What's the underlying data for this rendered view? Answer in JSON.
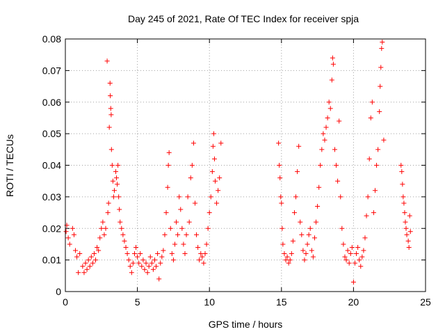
{
  "chart_data": {
    "type": "scatter",
    "title": "Day 245 of 2021, Rate Of TEC Index for receiver spja",
    "xlabel": "GPS time / hours",
    "ylabel": "ROTI / TECUs",
    "xlim": [
      0,
      25
    ],
    "ylim": [
      0,
      0.08
    ],
    "xticks": [
      "0",
      "5",
      "10",
      "15",
      "20",
      "25"
    ],
    "yticks": [
      "0",
      "0.01",
      "0.02",
      "0.03",
      "0.04",
      "0.05",
      "0.06",
      "0.07",
      "0.08"
    ],
    "grid": true,
    "marker": "+",
    "color": "#ff0000",
    "points": [
      [
        0.05,
        0.019
      ],
      [
        0.1,
        0.021
      ],
      [
        0.2,
        0.017
      ],
      [
        0.3,
        0.015
      ],
      [
        0.5,
        0.02
      ],
      [
        0.6,
        0.018
      ],
      [
        0.7,
        0.013
      ],
      [
        0.8,
        0.011
      ],
      [
        0.9,
        0.006
      ],
      [
        1.0,
        0.012
      ],
      [
        1.2,
        0.008
      ],
      [
        1.3,
        0.006
      ],
      [
        1.4,
        0.009
      ],
      [
        1.5,
        0.007
      ],
      [
        1.6,
        0.01
      ],
      [
        1.7,
        0.008
      ],
      [
        1.8,
        0.011
      ],
      [
        1.9,
        0.009
      ],
      [
        2.0,
        0.012
      ],
      [
        2.1,
        0.01
      ],
      [
        2.2,
        0.014
      ],
      [
        2.3,
        0.013
      ],
      [
        2.4,
        0.017
      ],
      [
        2.5,
        0.02
      ],
      [
        2.6,
        0.022
      ],
      [
        2.7,
        0.018
      ],
      [
        2.8,
        0.02
      ],
      [
        2.9,
        0.073
      ],
      [
        2.95,
        0.025
      ],
      [
        3.0,
        0.028
      ],
      [
        3.05,
        0.052
      ],
      [
        3.1,
        0.066
      ],
      [
        3.12,
        0.062
      ],
      [
        3.15,
        0.058
      ],
      [
        3.18,
        0.056
      ],
      [
        3.2,
        0.045
      ],
      [
        3.25,
        0.04
      ],
      [
        3.3,
        0.035
      ],
      [
        3.35,
        0.03
      ],
      [
        3.4,
        0.032
      ],
      [
        3.5,
        0.038
      ],
      [
        3.55,
        0.036
      ],
      [
        3.6,
        0.034
      ],
      [
        3.65,
        0.04
      ],
      [
        3.7,
        0.03
      ],
      [
        3.75,
        0.026
      ],
      [
        3.8,
        0.022
      ],
      [
        3.9,
        0.02
      ],
      [
        4.0,
        0.018
      ],
      [
        4.1,
        0.016
      ],
      [
        4.2,
        0.014
      ],
      [
        4.3,
        0.012
      ],
      [
        4.4,
        0.01
      ],
      [
        4.5,
        0.008
      ],
      [
        4.6,
        0.006
      ],
      [
        4.7,
        0.009
      ],
      [
        4.8,
        0.012
      ],
      [
        4.9,
        0.014
      ],
      [
        5.0,
        0.011
      ],
      [
        5.1,
        0.009
      ],
      [
        5.2,
        0.012
      ],
      [
        5.3,
        0.008
      ],
      [
        5.4,
        0.01
      ],
      [
        5.5,
        0.007
      ],
      [
        5.6,
        0.009
      ],
      [
        5.7,
        0.006
      ],
      [
        5.8,
        0.008
      ],
      [
        5.9,
        0.011
      ],
      [
        6.0,
        0.009
      ],
      [
        6.1,
        0.007
      ],
      [
        6.2,
        0.01
      ],
      [
        6.3,
        0.008
      ],
      [
        6.4,
        0.012
      ],
      [
        6.5,
        0.004
      ],
      [
        6.6,
        0.009
      ],
      [
        6.7,
        0.011
      ],
      [
        6.8,
        0.013
      ],
      [
        6.9,
        0.018
      ],
      [
        7.0,
        0.025
      ],
      [
        7.1,
        0.033
      ],
      [
        7.15,
        0.04
      ],
      [
        7.2,
        0.044
      ],
      [
        7.3,
        0.02
      ],
      [
        7.4,
        0.012
      ],
      [
        7.5,
        0.01
      ],
      [
        7.6,
        0.015
      ],
      [
        7.7,
        0.022
      ],
      [
        7.8,
        0.018
      ],
      [
        7.9,
        0.03
      ],
      [
        8.0,
        0.026
      ],
      [
        8.1,
        0.02
      ],
      [
        8.2,
        0.015
      ],
      [
        8.3,
        0.012
      ],
      [
        8.4,
        0.018
      ],
      [
        8.5,
        0.03
      ],
      [
        8.6,
        0.022
      ],
      [
        8.7,
        0.036
      ],
      [
        8.8,
        0.04
      ],
      [
        8.9,
        0.047
      ],
      [
        9.0,
        0.028
      ],
      [
        9.1,
        0.018
      ],
      [
        9.2,
        0.014
      ],
      [
        9.3,
        0.01
      ],
      [
        9.4,
        0.012
      ],
      [
        9.5,
        0.011
      ],
      [
        9.6,
        0.009
      ],
      [
        9.7,
        0.012
      ],
      [
        9.8,
        0.015
      ],
      [
        9.9,
        0.02
      ],
      [
        10.0,
        0.025
      ],
      [
        10.1,
        0.03
      ],
      [
        10.2,
        0.038
      ],
      [
        10.25,
        0.046
      ],
      [
        10.3,
        0.05
      ],
      [
        10.35,
        0.042
      ],
      [
        10.4,
        0.035
      ],
      [
        10.5,
        0.028
      ],
      [
        10.6,
        0.032
      ],
      [
        10.7,
        0.036
      ],
      [
        10.8,
        0.047
      ],
      [
        14.8,
        0.047
      ],
      [
        14.85,
        0.04
      ],
      [
        14.9,
        0.036
      ],
      [
        14.95,
        0.03
      ],
      [
        15.0,
        0.028
      ],
      [
        15.05,
        0.02
      ],
      [
        15.1,
        0.015
      ],
      [
        15.2,
        0.012
      ],
      [
        15.3,
        0.01
      ],
      [
        15.4,
        0.011
      ],
      [
        15.5,
        0.009
      ],
      [
        15.6,
        0.01
      ],
      [
        15.7,
        0.012
      ],
      [
        15.8,
        0.016
      ],
      [
        15.9,
        0.025
      ],
      [
        16.0,
        0.03
      ],
      [
        16.1,
        0.038
      ],
      [
        16.2,
        0.046
      ],
      [
        16.3,
        0.022
      ],
      [
        16.4,
        0.018
      ],
      [
        16.5,
        0.013
      ],
      [
        16.6,
        0.01
      ],
      [
        16.7,
        0.012
      ],
      [
        16.8,
        0.015
      ],
      [
        16.9,
        0.018
      ],
      [
        17.0,
        0.02
      ],
      [
        17.1,
        0.013
      ],
      [
        17.2,
        0.011
      ],
      [
        17.3,
        0.017
      ],
      [
        17.4,
        0.022
      ],
      [
        17.5,
        0.027
      ],
      [
        17.6,
        0.033
      ],
      [
        17.7,
        0.04
      ],
      [
        17.8,
        0.045
      ],
      [
        17.9,
        0.05
      ],
      [
        18.0,
        0.048
      ],
      [
        18.1,
        0.052
      ],
      [
        18.2,
        0.055
      ],
      [
        18.3,
        0.06
      ],
      [
        18.4,
        0.058
      ],
      [
        18.5,
        0.067
      ],
      [
        18.55,
        0.074
      ],
      [
        18.6,
        0.072
      ],
      [
        18.7,
        0.045
      ],
      [
        18.8,
        0.04
      ],
      [
        18.9,
        0.035
      ],
      [
        19.0,
        0.054
      ],
      [
        19.1,
        0.03
      ],
      [
        19.2,
        0.02
      ],
      [
        19.3,
        0.015
      ],
      [
        19.4,
        0.011
      ],
      [
        19.5,
        0.01
      ],
      [
        19.6,
        0.013
      ],
      [
        19.7,
        0.009
      ],
      [
        19.8,
        0.012
      ],
      [
        19.9,
        0.014
      ],
      [
        20.0,
        0.003
      ],
      [
        20.1,
        0.009
      ],
      [
        20.2,
        0.012
      ],
      [
        20.3,
        0.014
      ],
      [
        20.4,
        0.01
      ],
      [
        20.5,
        0.008
      ],
      [
        20.6,
        0.011
      ],
      [
        20.7,
        0.013
      ],
      [
        20.8,
        0.017
      ],
      [
        20.9,
        0.024
      ],
      [
        21.0,
        0.03
      ],
      [
        21.1,
        0.042
      ],
      [
        21.2,
        0.055
      ],
      [
        21.3,
        0.06
      ],
      [
        21.4,
        0.025
      ],
      [
        21.5,
        0.032
      ],
      [
        21.6,
        0.04
      ],
      [
        21.7,
        0.045
      ],
      [
        21.8,
        0.057
      ],
      [
        21.85,
        0.065
      ],
      [
        21.9,
        0.071
      ],
      [
        21.95,
        0.077
      ],
      [
        22.0,
        0.079
      ],
      [
        22.1,
        0.048
      ],
      [
        23.3,
        0.04
      ],
      [
        23.35,
        0.038
      ],
      [
        23.4,
        0.034
      ],
      [
        23.45,
        0.03
      ],
      [
        23.5,
        0.028
      ],
      [
        23.55,
        0.025
      ],
      [
        23.6,
        0.022
      ],
      [
        23.65,
        0.02
      ],
      [
        23.7,
        0.018
      ],
      [
        23.8,
        0.016
      ],
      [
        23.85,
        0.014
      ],
      [
        23.9,
        0.024
      ],
      [
        23.95,
        0.019
      ]
    ]
  }
}
